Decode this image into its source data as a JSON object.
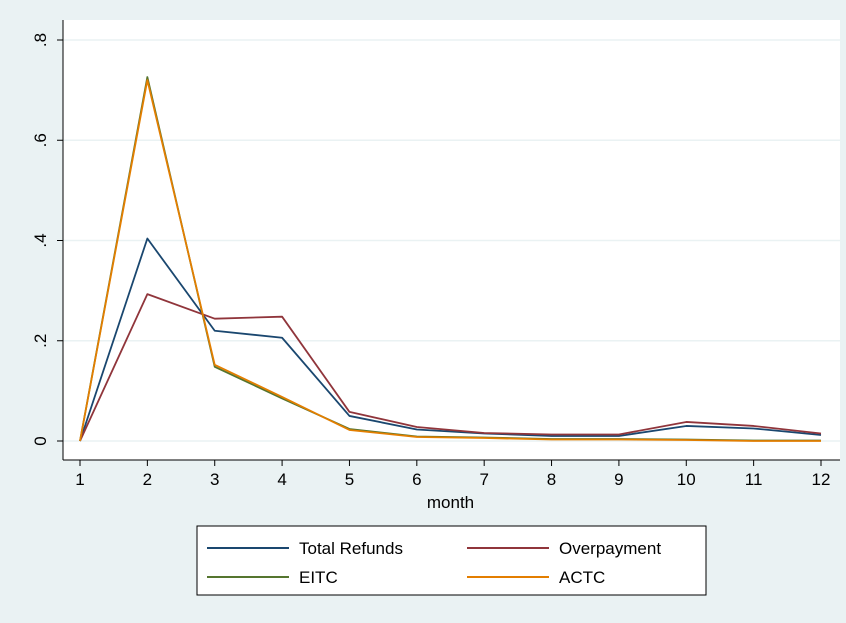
{
  "chart_data": {
    "type": "line",
    "xlabel": "month",
    "ylabel": "",
    "title": "",
    "x": [
      1,
      2,
      3,
      4,
      5,
      6,
      7,
      8,
      9,
      10,
      11,
      12
    ],
    "xticks": [
      "1",
      "2",
      "3",
      "4",
      "5",
      "6",
      "7",
      "8",
      "9",
      "10",
      "11",
      "12"
    ],
    "xlim": [
      1,
      12
    ],
    "ylim": [
      0,
      0.8
    ],
    "yticks": [
      0,
      0.2,
      0.4,
      0.6,
      0.8
    ],
    "ytick_labels": [
      "0",
      ".2",
      ".4",
      ".6",
      ".8"
    ],
    "grid": true,
    "legend_position": "bottom",
    "series": [
      {
        "name": "Total Refunds",
        "color": "#1a476f",
        "values": [
          0,
          0.404,
          0.22,
          0.206,
          0.05,
          0.023,
          0.015,
          0.01,
          0.01,
          0.03,
          0.025,
          0.012
        ]
      },
      {
        "name": "Overpayment",
        "color": "#90353b",
        "values": [
          0,
          0.293,
          0.244,
          0.248,
          0.058,
          0.028,
          0.016,
          0.013,
          0.013,
          0.038,
          0.03,
          0.015
        ]
      },
      {
        "name": "EITC",
        "color": "#55752f",
        "values": [
          0,
          0.726,
          0.148,
          0.085,
          0.024,
          0.009,
          0.007,
          0.004,
          0.004,
          0.003,
          0.001,
          0.001
        ]
      },
      {
        "name": "ACTC",
        "color": "#e37e00",
        "values": [
          0,
          0.72,
          0.152,
          0.088,
          0.022,
          0.008,
          0.006,
          0.003,
          0.003,
          0.002,
          0.0,
          0.0
        ]
      }
    ]
  }
}
